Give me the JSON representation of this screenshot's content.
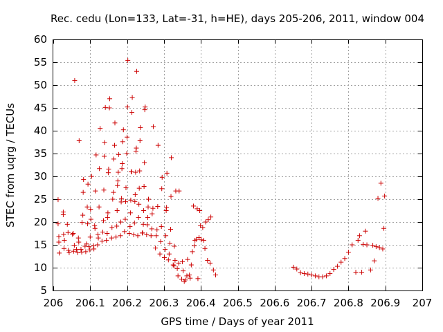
{
  "chart_data": {
    "type": "scatter",
    "title": "Rec. cedu (Lon=133, Lat=-31, h=HE), days 205-206, 2011, window 004",
    "xlabel": "GPS time / Days of year 2011",
    "ylabel": "STEC from uqrg / TECUs",
    "xlim": [
      206,
      207
    ],
    "ylim": [
      5,
      60
    ],
    "xticks": [
      206,
      206.1,
      206.2,
      206.3,
      206.4,
      206.5,
      206.6,
      206.7,
      206.8,
      206.9,
      207
    ],
    "xtick_labels": [
      "206",
      "206.1",
      "206.2",
      "206.3",
      "206.4",
      "206.5",
      "206.6",
      "206.7",
      "206.8",
      "206.9",
      "207"
    ],
    "yticks": [
      5,
      10,
      15,
      20,
      25,
      30,
      35,
      40,
      45,
      50,
      55,
      60
    ],
    "ytick_labels": [
      "5",
      "10",
      "15",
      "20",
      "25",
      "30",
      "35",
      "40",
      "45",
      "50",
      "55",
      "60"
    ],
    "grid": true,
    "marker": "+",
    "color": "#cc0000",
    "series": [
      {
        "name": "STEC",
        "points": [
          [
            206.013,
            24.9
          ],
          [
            206.013,
            19.6
          ],
          [
            206.015,
            16.8
          ],
          [
            206.015,
            15.6
          ],
          [
            206.016,
            13.2
          ],
          [
            206.027,
            22.2
          ],
          [
            206.027,
            21.6
          ],
          [
            206.028,
            17.3
          ],
          [
            206.029,
            14.2
          ],
          [
            206.03,
            16.0
          ],
          [
            206.038,
            19.5
          ],
          [
            206.04,
            17.7
          ],
          [
            206.041,
            13.8
          ],
          [
            206.043,
            13.3
          ],
          [
            206.052,
            17.3
          ],
          [
            206.054,
            17.5
          ],
          [
            206.055,
            13.6
          ],
          [
            206.057,
            14.9
          ],
          [
            206.058,
            51.0
          ],
          [
            206.063,
            14.0
          ],
          [
            206.066,
            13.3
          ],
          [
            206.068,
            16.5
          ],
          [
            206.069,
            15.6
          ],
          [
            206.07,
            37.8
          ],
          [
            206.075,
            14.0
          ],
          [
            206.077,
            13.4
          ],
          [
            206.078,
            19.9
          ],
          [
            206.08,
            21.5
          ],
          [
            206.081,
            26.5
          ],
          [
            206.082,
            29.3
          ],
          [
            206.086,
            14.7
          ],
          [
            206.088,
            13.5
          ],
          [
            206.09,
            15.2
          ],
          [
            206.092,
            23.3
          ],
          [
            206.093,
            19.6
          ],
          [
            206.094,
            28.3
          ],
          [
            206.097,
            14.6
          ],
          [
            206.099,
            13.9
          ],
          [
            206.1,
            16.7
          ],
          [
            206.101,
            22.8
          ],
          [
            206.102,
            20.6
          ],
          [
            206.104,
            30.0
          ],
          [
            206.109,
            14.8
          ],
          [
            206.11,
            14.1
          ],
          [
            206.112,
            19.2
          ],
          [
            206.113,
            18.6
          ],
          [
            206.114,
            26.8
          ],
          [
            206.116,
            34.7
          ],
          [
            206.12,
            15.0
          ],
          [
            206.121,
            17.3
          ],
          [
            206.122,
            16.5
          ],
          [
            206.124,
            23.3
          ],
          [
            206.125,
            31.7
          ],
          [
            206.127,
            40.5
          ],
          [
            206.132,
            15.8
          ],
          [
            206.134,
            17.8
          ],
          [
            206.136,
            20.3
          ],
          [
            206.137,
            27.0
          ],
          [
            206.138,
            34.4
          ],
          [
            206.139,
            37.4
          ],
          [
            206.141,
            45.1
          ],
          [
            206.144,
            16.0
          ],
          [
            206.146,
            17.5
          ],
          [
            206.147,
            21.0
          ],
          [
            206.148,
            22.0
          ],
          [
            206.149,
            30.8
          ],
          [
            206.15,
            31.6
          ],
          [
            206.152,
            45.0
          ],
          [
            206.153,
            47.0
          ],
          [
            206.158,
            16.5
          ],
          [
            206.159,
            18.8
          ],
          [
            206.161,
            25.0
          ],
          [
            206.163,
            26.5
          ],
          [
            206.164,
            33.8
          ],
          [
            206.166,
            36.8
          ],
          [
            206.167,
            41.7
          ],
          [
            206.17,
            16.7
          ],
          [
            206.172,
            19.1
          ],
          [
            206.173,
            22.5
          ],
          [
            206.174,
            28.0
          ],
          [
            206.175,
            29.0
          ],
          [
            206.176,
            30.9
          ],
          [
            206.177,
            34.8
          ],
          [
            206.182,
            17.0
          ],
          [
            206.183,
            20.0
          ],
          [
            206.184,
            24.4
          ],
          [
            206.185,
            25.2
          ],
          [
            206.186,
            31.7
          ],
          [
            206.187,
            32.8
          ],
          [
            206.188,
            37.6
          ],
          [
            206.19,
            40.2
          ],
          [
            206.193,
            17.9
          ],
          [
            206.195,
            20.6
          ],
          [
            206.196,
            24.5
          ],
          [
            206.197,
            27.5
          ],
          [
            206.199,
            35.0
          ],
          [
            206.2,
            38.6
          ],
          [
            206.201,
            45.2
          ],
          [
            206.202,
            55.4
          ],
          [
            206.206,
            17.5
          ],
          [
            206.208,
            19.0
          ],
          [
            206.209,
            22.0
          ],
          [
            206.21,
            24.8
          ],
          [
            206.211,
            31.0
          ],
          [
            206.212,
            31.0
          ],
          [
            206.213,
            44.0
          ],
          [
            206.214,
            47.3
          ],
          [
            206.218,
            17.2
          ],
          [
            206.22,
            19.8
          ],
          [
            206.221,
            24.5
          ],
          [
            206.222,
            26.0
          ],
          [
            206.223,
            30.9
          ],
          [
            206.224,
            35.5
          ],
          [
            206.225,
            36.2
          ],
          [
            206.226,
            53.0
          ],
          [
            206.229,
            17.0
          ],
          [
            206.231,
            21.0
          ],
          [
            206.232,
            23.9
          ],
          [
            206.233,
            27.4
          ],
          [
            206.234,
            31.2
          ],
          [
            206.235,
            37.8
          ],
          [
            206.236,
            40.7
          ],
          [
            206.241,
            17.6
          ],
          [
            206.242,
            17.6
          ],
          [
            206.244,
            19.5
          ],
          [
            206.245,
            22.5
          ],
          [
            206.246,
            27.8
          ],
          [
            206.247,
            33.0
          ],
          [
            206.248,
            44.6
          ],
          [
            206.249,
            45.2
          ],
          [
            206.253,
            17.2
          ],
          [
            206.255,
            19.4
          ],
          [
            206.256,
            21.0
          ],
          [
            206.257,
            23.3
          ],
          [
            206.258,
            25.0
          ],
          [
            206.265,
            17.0
          ],
          [
            206.267,
            18.5
          ],
          [
            206.268,
            21.8
          ],
          [
            206.27,
            23.0
          ],
          [
            206.271,
            40.9
          ],
          [
            206.277,
            14.3
          ],
          [
            206.279,
            17.0
          ],
          [
            206.281,
            18.3
          ],
          [
            206.283,
            23.4
          ],
          [
            206.284,
            36.8
          ],
          [
            206.289,
            13.0
          ],
          [
            206.291,
            15.7
          ],
          [
            206.293,
            19.0
          ],
          [
            206.294,
            27.3
          ],
          [
            206.295,
            29.8
          ],
          [
            206.301,
            12.2
          ],
          [
            206.303,
            14.0
          ],
          [
            206.305,
            17.0
          ],
          [
            206.306,
            22.5
          ],
          [
            206.307,
            23.2
          ],
          [
            206.308,
            30.7
          ],
          [
            206.312,
            11.7
          ],
          [
            206.314,
            13.0
          ],
          [
            206.316,
            15.3
          ],
          [
            206.318,
            18.4
          ],
          [
            206.319,
            25.6
          ],
          [
            206.32,
            34.1
          ],
          [
            206.325,
            10.6
          ],
          [
            206.327,
            10.4
          ],
          [
            206.328,
            14.7
          ],
          [
            206.33,
            11.6
          ],
          [
            206.332,
            26.8
          ],
          [
            206.336,
            9.8
          ],
          [
            206.338,
            8.2
          ],
          [
            206.34,
            11.0
          ],
          [
            206.341,
            26.8
          ],
          [
            206.348,
            7.5
          ],
          [
            206.35,
            11.3
          ],
          [
            206.352,
            9.3
          ],
          [
            206.355,
            7.0
          ],
          [
            206.358,
            7.3
          ],
          [
            206.362,
            8.2
          ],
          [
            206.364,
            11.8
          ],
          [
            206.369,
            8.4
          ],
          [
            206.371,
            7.7
          ],
          [
            206.374,
            10.6
          ],
          [
            206.377,
            13.5
          ],
          [
            206.38,
            23.5
          ],
          [
            206.382,
            14.8
          ],
          [
            206.384,
            16.0
          ],
          [
            206.388,
            16.2
          ],
          [
            206.39,
            22.9
          ],
          [
            206.392,
            7.6
          ],
          [
            206.395,
            16.6
          ],
          [
            206.397,
            22.5
          ],
          [
            206.399,
            19.2
          ],
          [
            206.401,
            16.1
          ],
          [
            206.405,
            18.8
          ],
          [
            206.408,
            16.0
          ],
          [
            206.411,
            14.2
          ],
          [
            206.413,
            20.0
          ],
          [
            206.418,
            11.6
          ],
          [
            206.42,
            20.5
          ],
          [
            206.425,
            11.0
          ],
          [
            206.427,
            21.1
          ],
          [
            206.434,
            9.5
          ],
          [
            206.44,
            8.4
          ],
          [
            206.651,
            10.1
          ],
          [
            206.66,
            9.7
          ],
          [
            206.67,
            8.9
          ],
          [
            206.68,
            8.7
          ],
          [
            206.69,
            8.6
          ],
          [
            206.7,
            8.4
          ],
          [
            206.71,
            8.2
          ],
          [
            206.72,
            8.0
          ],
          [
            206.73,
            8.0
          ],
          [
            206.74,
            8.2
          ],
          [
            206.75,
            8.7
          ],
          [
            206.76,
            9.6
          ],
          [
            206.77,
            10.3
          ],
          [
            206.78,
            11.2
          ],
          [
            206.79,
            12.0
          ],
          [
            206.8,
            13.4
          ],
          [
            206.81,
            15.0
          ],
          [
            206.82,
            9.0
          ],
          [
            206.826,
            16.0
          ],
          [
            206.83,
            17.0
          ],
          [
            206.836,
            9.0
          ],
          [
            206.84,
            15.1
          ],
          [
            206.846,
            18.0
          ],
          [
            206.85,
            15.0
          ],
          [
            206.86,
            9.5
          ],
          [
            206.866,
            14.9
          ],
          [
            206.87,
            11.5
          ],
          [
            206.875,
            14.6
          ],
          [
            206.88,
            25.2
          ],
          [
            206.884,
            14.4
          ],
          [
            206.888,
            28.5
          ],
          [
            206.893,
            14.1
          ],
          [
            206.896,
            18.6
          ],
          [
            206.898,
            25.7
          ]
        ]
      }
    ]
  }
}
